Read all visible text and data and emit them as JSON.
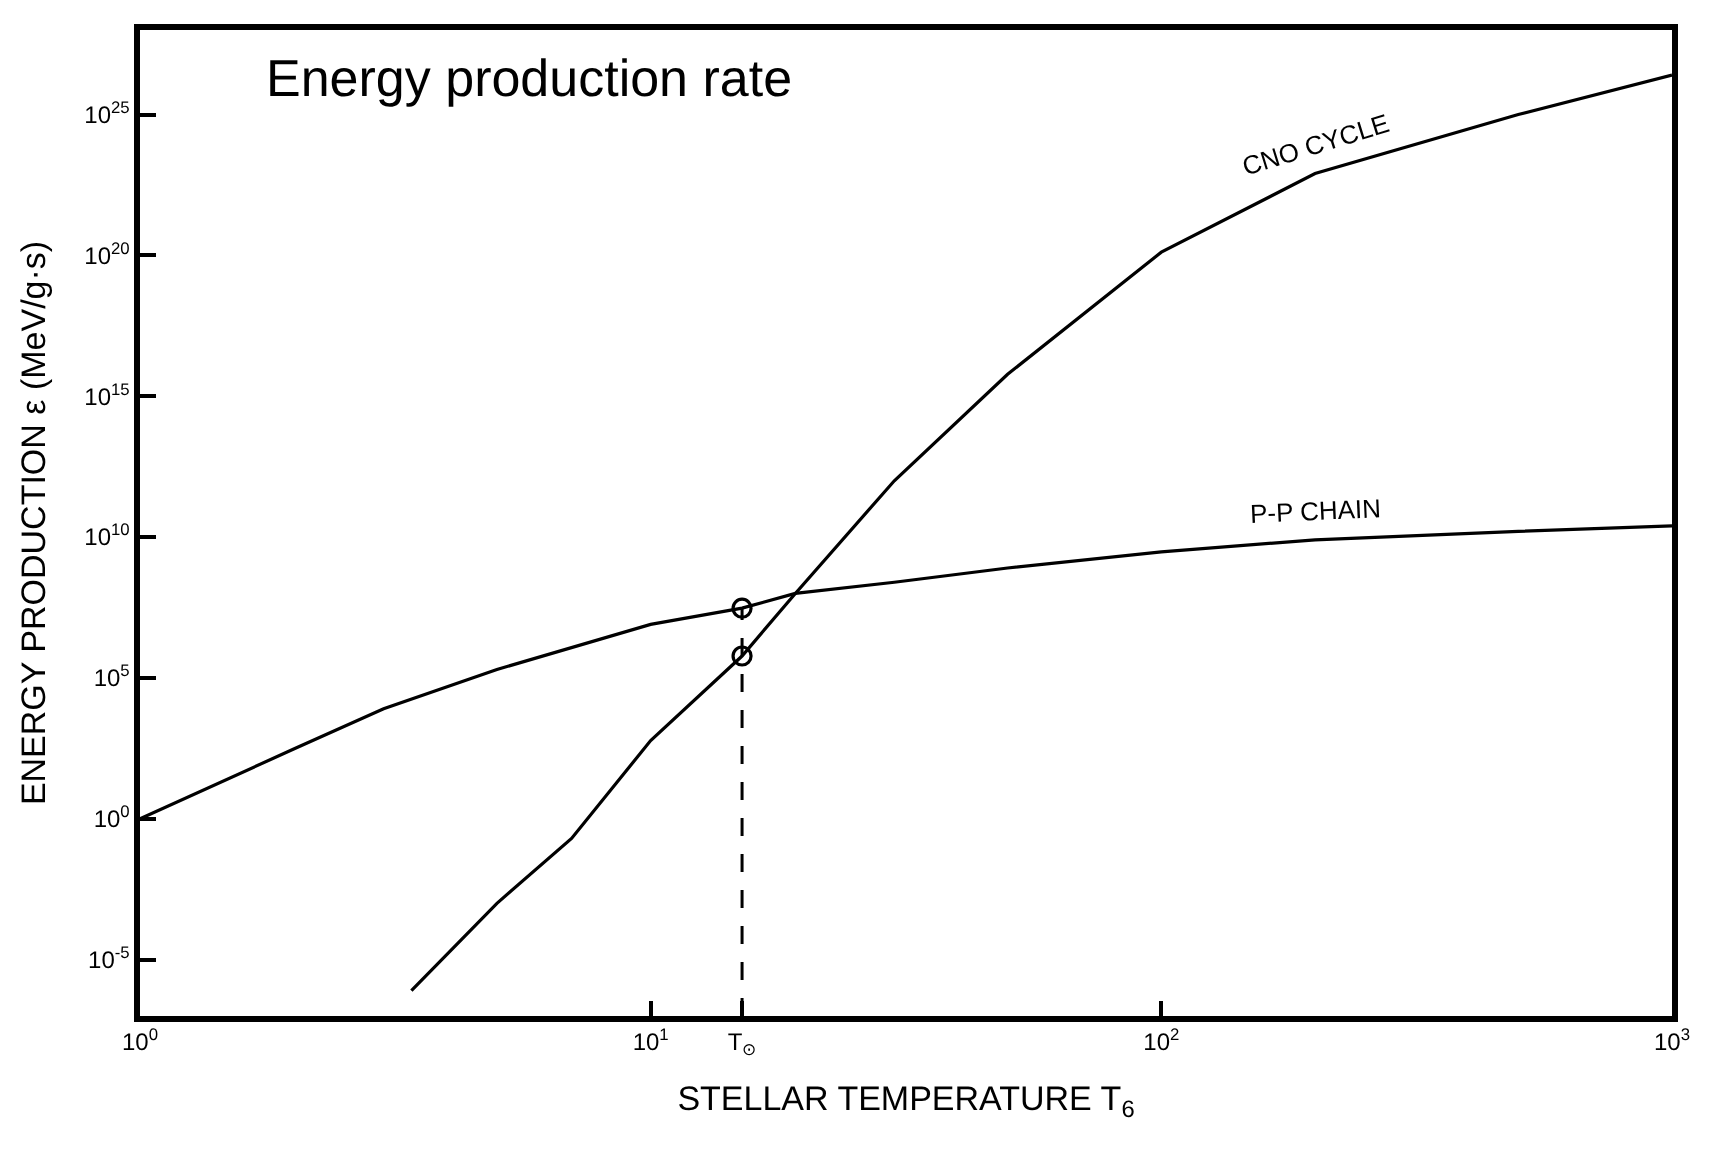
{
  "chart_data": {
    "type": "line",
    "title": "Energy production rate",
    "xlabel": "STELLAR TEMPERATURE T$_{6}$",
    "ylabel": "ENERGY PRODUCTION ε (MeV/g·s)",
    "log": "xy",
    "marker": "none",
    "line_style": "solid",
    "xlim": [
      1,
      1000
    ],
    "ylim": [
      1e-07,
      1e+28
    ],
    "xticks": [
      {
        "value": 1,
        "label": "10$^{0}$"
      },
      {
        "value": 10,
        "label": "10$^{1}$"
      },
      {
        "value": 15.1,
        "label": "T$_{⊙}$"
      },
      {
        "value": 100,
        "label": "10$^{2}$"
      },
      {
        "value": 1000,
        "label": "10$^{3}$"
      }
    ],
    "yticks": [
      {
        "value": 1e-05,
        "label": "10$^{-5}$"
      },
      {
        "value": 1,
        "label": "10$^{0}$"
      },
      {
        "value": 100000.0,
        "label": "10$^{5}$"
      },
      {
        "value": 10000000000.0,
        "label": "10$^{10}$"
      },
      {
        "value": 1000000000000000.0,
        "label": "10$^{15}$"
      },
      {
        "value": 1e+20,
        "label": "10$^{20}$"
      },
      {
        "value": 1e+25,
        "label": "10$^{25}$"
      }
    ],
    "series": [
      {
        "name": "CNO CYCLE",
        "color": "#000000",
        "x": [
          3.4,
          5,
          7,
          10,
          15.1,
          19.2,
          30,
          50,
          100,
          200,
          500,
          1000
        ],
        "values": [
          8e-07,
          0.001,
          0.2,
          600.0,
          600000.0,
          100000000.0,
          1000000000000.0,
          6000000000000000.0,
          1.3e+20,
          8e+22,
          1e+25,
          2.5e+26
        ]
      },
      {
        "name": "P-P CHAIN",
        "color": "#000000",
        "x": [
          1,
          2,
          3,
          5,
          10,
          15.1,
          19.2,
          30,
          50,
          100,
          200,
          500,
          1000
        ],
        "values": [
          1,
          300.0,
          8000.0,
          200000.0,
          8000000.0,
          30000000.0,
          100000000.0,
          250000000.0,
          800000000.0,
          3000000000.0,
          8000000000.0,
          16000000000.0,
          25000000000.0
        ]
      },
      {
        "type": "scatter",
        "marker": "circle",
        "color": "#000000",
        "x": [
          15.1,
          15.1
        ],
        "values": [
          30000000.0,
          600000.0
        ]
      }
    ],
    "ref_lines": [
      {
        "axis": "x",
        "value": 15.1,
        "line_style": "dashed",
        "color": "#000000"
      }
    ]
  }
}
